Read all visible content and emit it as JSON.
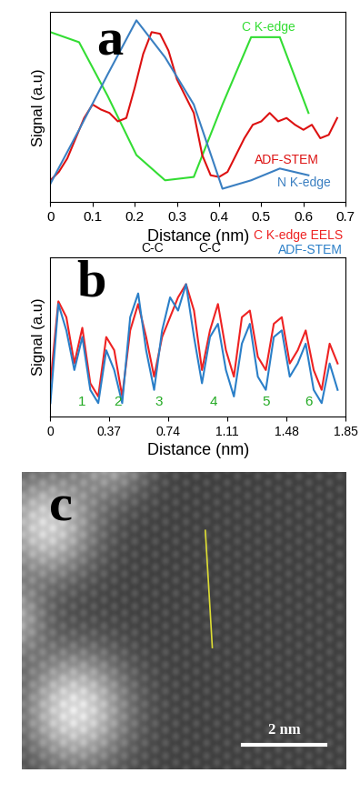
{
  "chart_data": [
    {
      "type": "line",
      "panel_label": "a",
      "x_label": "Distance (nm)",
      "y_label": "Signal (a.u)",
      "xlim": [
        0,
        0.7
      ],
      "xticks": [
        0,
        0.1,
        0.2,
        0.3,
        0.4,
        0.5,
        0.6,
        0.7
      ],
      "ylim": [
        -0.08,
        1.05
      ],
      "tick_labels": "x",
      "series": [
        {
          "name": "C K-edge",
          "color": "#33dd33",
          "x": [
            0,
            0.068,
            0.136,
            0.204,
            0.272,
            0.34,
            0.408,
            0.476,
            0.544,
            0.612
          ],
          "values": [
            0.93,
            0.87,
            0.55,
            0.2,
            0.05,
            0.07,
            0.5,
            0.9,
            0.9,
            0.45
          ]
        },
        {
          "name": "ADF-STEM",
          "color": "#dd1111",
          "x": [
            0,
            0.02,
            0.04,
            0.06,
            0.08,
            0.1,
            0.12,
            0.14,
            0.16,
            0.18,
            0.2,
            0.22,
            0.24,
            0.26,
            0.28,
            0.3,
            0.32,
            0.34,
            0.36,
            0.38,
            0.4,
            0.42,
            0.44,
            0.46,
            0.48,
            0.5,
            0.52,
            0.54,
            0.56,
            0.58,
            0.6,
            0.62,
            0.64,
            0.66,
            0.68
          ],
          "values": [
            0.05,
            0.1,
            0.18,
            0.3,
            0.42,
            0.5,
            0.47,
            0.45,
            0.4,
            0.42,
            0.6,
            0.8,
            0.93,
            0.92,
            0.82,
            0.65,
            0.55,
            0.45,
            0.2,
            0.08,
            0.07,
            0.1,
            0.2,
            0.3,
            0.38,
            0.4,
            0.45,
            0.4,
            0.42,
            0.38,
            0.35,
            0.38,
            0.3,
            0.32,
            0.42
          ]
        },
        {
          "name": "N K-edge",
          "color": "#3a7fc1",
          "x": [
            0,
            0.068,
            0.136,
            0.204,
            0.272,
            0.34,
            0.408,
            0.476,
            0.544,
            0.612
          ],
          "values": [
            0.03,
            0.35,
            0.68,
            1.0,
            0.78,
            0.5,
            0.0,
            0.05,
            0.12,
            0.08
          ]
        }
      ]
    },
    {
      "type": "line",
      "panel_label": "b",
      "x_label": "Distance (nm)",
      "y_label": "Signal (a.u)",
      "xlim": [
        0,
        1.85
      ],
      "xticks": [
        0,
        0.37,
        0.74,
        1.11,
        1.48,
        1.85
      ],
      "ylim": [
        -0.05,
        1.15
      ],
      "tick_labels": "x",
      "x": [
        0,
        0.05,
        0.1,
        0.15,
        0.2,
        0.25,
        0.3,
        0.35,
        0.4,
        0.45,
        0.5,
        0.55,
        0.6,
        0.65,
        0.7,
        0.75,
        0.8,
        0.85,
        0.9,
        0.95,
        1.0,
        1.05,
        1.1,
        1.15,
        1.2,
        1.25,
        1.3,
        1.35,
        1.4,
        1.45,
        1.5,
        1.55,
        1.6,
        1.65,
        1.7,
        1.75,
        1.8
      ],
      "series": [
        {
          "name": "C K-edge EELS",
          "color": "#ee2222",
          "values": [
            0.2,
            0.82,
            0.7,
            0.35,
            0.62,
            0.2,
            0.1,
            0.55,
            0.45,
            0.1,
            0.6,
            0.8,
            0.55,
            0.25,
            0.55,
            0.7,
            0.85,
            0.95,
            0.75,
            0.3,
            0.6,
            0.8,
            0.45,
            0.25,
            0.7,
            0.75,
            0.4,
            0.3,
            0.65,
            0.7,
            0.35,
            0.45,
            0.6,
            0.3,
            0.15,
            0.5,
            0.35
          ]
        },
        {
          "name": "ADF-STEM",
          "color": "#2a7fc8",
          "values": [
            0.05,
            0.8,
            0.6,
            0.3,
            0.55,
            0.15,
            0.05,
            0.45,
            0.3,
            0.05,
            0.7,
            0.88,
            0.45,
            0.15,
            0.6,
            0.85,
            0.75,
            0.95,
            0.55,
            0.2,
            0.55,
            0.65,
            0.3,
            0.1,
            0.5,
            0.65,
            0.25,
            0.15,
            0.55,
            0.6,
            0.25,
            0.35,
            0.5,
            0.15,
            0.05,
            0.35,
            0.15
          ]
        }
      ],
      "peak_labels": [
        {
          "text": "C-C",
          "x": 0.64
        },
        {
          "text": "C-C",
          "x": 1.0
        }
      ],
      "site_labels": [
        {
          "text": "1",
          "x": 0.2
        },
        {
          "text": "2",
          "x": 0.42
        },
        {
          "text": "3",
          "x": 0.68
        },
        {
          "text": "4",
          "x": 1.02
        },
        {
          "text": "5",
          "x": 1.35
        },
        {
          "text": "6",
          "x": 1.62
        }
      ]
    }
  ],
  "image_panel": {
    "panel_label": "c",
    "xlim": [
      0,
      7.9
    ],
    "ylim": [
      0,
      6.6
    ],
    "line": {
      "x": [
        4.48,
        4.65
      ],
      "y": [
        5.3,
        2.7
      ],
      "color": "#dddd33"
    },
    "scale_bar": {
      "length": 2,
      "label": "2 nm",
      "color": "white"
    }
  }
}
